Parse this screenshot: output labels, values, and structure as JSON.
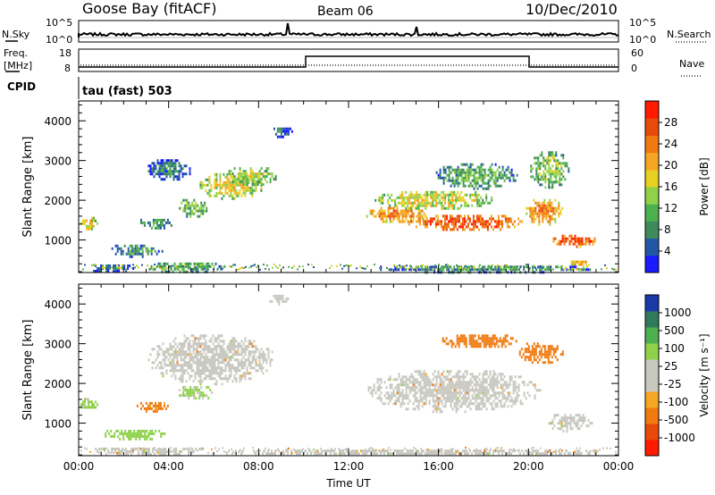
{
  "header": {
    "station": "Goose Bay (fitACF)",
    "beam": "Beam 06",
    "date": "10/Dec/2010"
  },
  "strips": {
    "nsky_label": "N.Sky",
    "nsky_ticks": [
      "10^5",
      "10^0"
    ],
    "nsearch_label": "N.Search",
    "nsearch_ticks": [
      "10^5",
      "10^0"
    ],
    "freq_label_1": "Freq.",
    "freq_label_2": "[MHz]",
    "freq_ticks": [
      "18",
      "8"
    ],
    "nave_label": "Nave",
    "nave_ticks": [
      "60",
      "0"
    ],
    "cpid_label": "CPID",
    "cpid_text": "tau (fast) 503"
  },
  "colors": {
    "power_scale": [
      "#1a1aff",
      "#2456a8",
      "#3d8a5a",
      "#4caf50",
      "#8fd24a",
      "#e8d020",
      "#f5a623",
      "#f07a10",
      "#e84a0a",
      "#ff1a00"
    ],
    "velocity_scale": [
      "#ff1a00",
      "#e84a0a",
      "#f07a10",
      "#f5a623",
      "#c8c8c0",
      "#c8c8c0",
      "#8fd24a",
      "#4caf50",
      "#2f7a5a",
      "#1a3aa8"
    ],
    "gray": "#c8c8c0"
  },
  "chart_data": [
    {
      "type": "heatmap",
      "name": "power",
      "ylabel": "Slant Range [km]",
      "colorbar_label": "Power [dB]",
      "colorbar_ticks": [
        "28",
        "24",
        "20",
        "16",
        "12",
        "8",
        "4"
      ],
      "y_ticks": [
        "4000",
        "3000",
        "2000",
        "1000"
      ],
      "ylim": [
        180,
        4500
      ],
      "xlim_hours": [
        0,
        24
      ],
      "blobs": [
        {
          "t0": 0.0,
          "t1": 0.8,
          "r0": 1250,
          "r1": 1650,
          "v": 18
        },
        {
          "t0": 1.3,
          "t1": 3.8,
          "r0": 600,
          "r1": 950,
          "v": 10
        },
        {
          "t0": 0.4,
          "t1": 2.5,
          "r0": 200,
          "r1": 450,
          "v": 8
        },
        {
          "t0": 2.8,
          "t1": 6.5,
          "r0": 200,
          "r1": 500,
          "v": 12
        },
        {
          "t0": 2.5,
          "t1": 4.2,
          "r0": 1300,
          "r1": 1600,
          "v": 10
        },
        {
          "t0": 4.3,
          "t1": 5.8,
          "r0": 1600,
          "r1": 2100,
          "v": 14
        },
        {
          "t0": 3.0,
          "t1": 5.0,
          "r0": 2500,
          "r1": 3100,
          "v": 8
        },
        {
          "t0": 5.3,
          "t1": 8.2,
          "r0": 2050,
          "r1": 2750,
          "v": 18
        },
        {
          "t0": 6.5,
          "t1": 8.8,
          "r0": 2400,
          "r1": 2900,
          "v": 16
        },
        {
          "t0": 8.5,
          "t1": 9.5,
          "r0": 3600,
          "r1": 3900,
          "v": 6
        },
        {
          "t0": 12.7,
          "t1": 15.5,
          "r0": 1450,
          "r1": 1900,
          "v": 24
        },
        {
          "t0": 13.0,
          "t1": 18.5,
          "r0": 1800,
          "r1": 2300,
          "v": 18
        },
        {
          "t0": 14.5,
          "t1": 19.8,
          "r0": 1250,
          "r1": 1700,
          "v": 28
        },
        {
          "t0": 15.8,
          "t1": 19.5,
          "r0": 2300,
          "r1": 3000,
          "v": 12
        },
        {
          "t0": 19.8,
          "t1": 21.5,
          "r0": 1400,
          "r1": 2100,
          "v": 24
        },
        {
          "t0": 20.0,
          "t1": 21.8,
          "r0": 2300,
          "r1": 3300,
          "v": 14
        },
        {
          "t0": 21.0,
          "t1": 23.0,
          "r0": 850,
          "r1": 1200,
          "v": 28
        },
        {
          "t0": 21.8,
          "t1": 22.6,
          "r0": 350,
          "r1": 550,
          "v": 22
        },
        {
          "t0": 13.0,
          "t1": 23.0,
          "r0": 200,
          "r1": 420,
          "v": 10
        }
      ]
    },
    {
      "type": "heatmap",
      "name": "velocity",
      "ylabel": "Slant Range [km]",
      "colorbar_label": "Velocity [m s⁻¹]",
      "colorbar_ticks": [
        "1000",
        "500",
        "100",
        "25",
        "-25",
        "-100",
        "-500",
        "-1000"
      ],
      "y_ticks": [
        "4000",
        "3000",
        "2000",
        "1000"
      ],
      "x_ticks": [
        "00:00",
        "04:00",
        "08:00",
        "12:00",
        "16:00",
        "20:00",
        "00:00"
      ],
      "xlabel": "Time UT",
      "ylim": [
        180,
        4500
      ],
      "xlim_hours": [
        0,
        24
      ],
      "blobs": [
        {
          "t0": 0.0,
          "t1": 0.8,
          "r0": 1300,
          "r1": 1700,
          "v": 150
        },
        {
          "t0": 1.0,
          "t1": 3.8,
          "r0": 600,
          "r1": 900,
          "v": 200
        },
        {
          "t0": 0.4,
          "t1": 6.0,
          "r0": 200,
          "r1": 450,
          "v": 0
        },
        {
          "t0": 2.5,
          "t1": 4.0,
          "r0": 1300,
          "r1": 1600,
          "v": -150
        },
        {
          "t0": 4.3,
          "t1": 6.0,
          "r0": 1600,
          "r1": 2000,
          "v": 120
        },
        {
          "t0": 3.0,
          "t1": 8.7,
          "r0": 2000,
          "r1": 3300,
          "v": 0
        },
        {
          "t0": 8.4,
          "t1": 9.3,
          "r0": 4000,
          "r1": 4300,
          "v": 0
        },
        {
          "t0": 12.7,
          "t1": 20.5,
          "r0": 1300,
          "r1": 2400,
          "v": 0
        },
        {
          "t0": 16.0,
          "t1": 19.5,
          "r0": 2900,
          "r1": 3300,
          "v": -200
        },
        {
          "t0": 19.5,
          "t1": 21.5,
          "r0": 2500,
          "r1": 3100,
          "v": -300
        },
        {
          "t0": 20.8,
          "t1": 22.8,
          "r0": 800,
          "r1": 1300,
          "v": 0
        },
        {
          "t0": 6.0,
          "t1": 23.5,
          "r0": 200,
          "r1": 400,
          "v": 0
        }
      ]
    }
  ]
}
